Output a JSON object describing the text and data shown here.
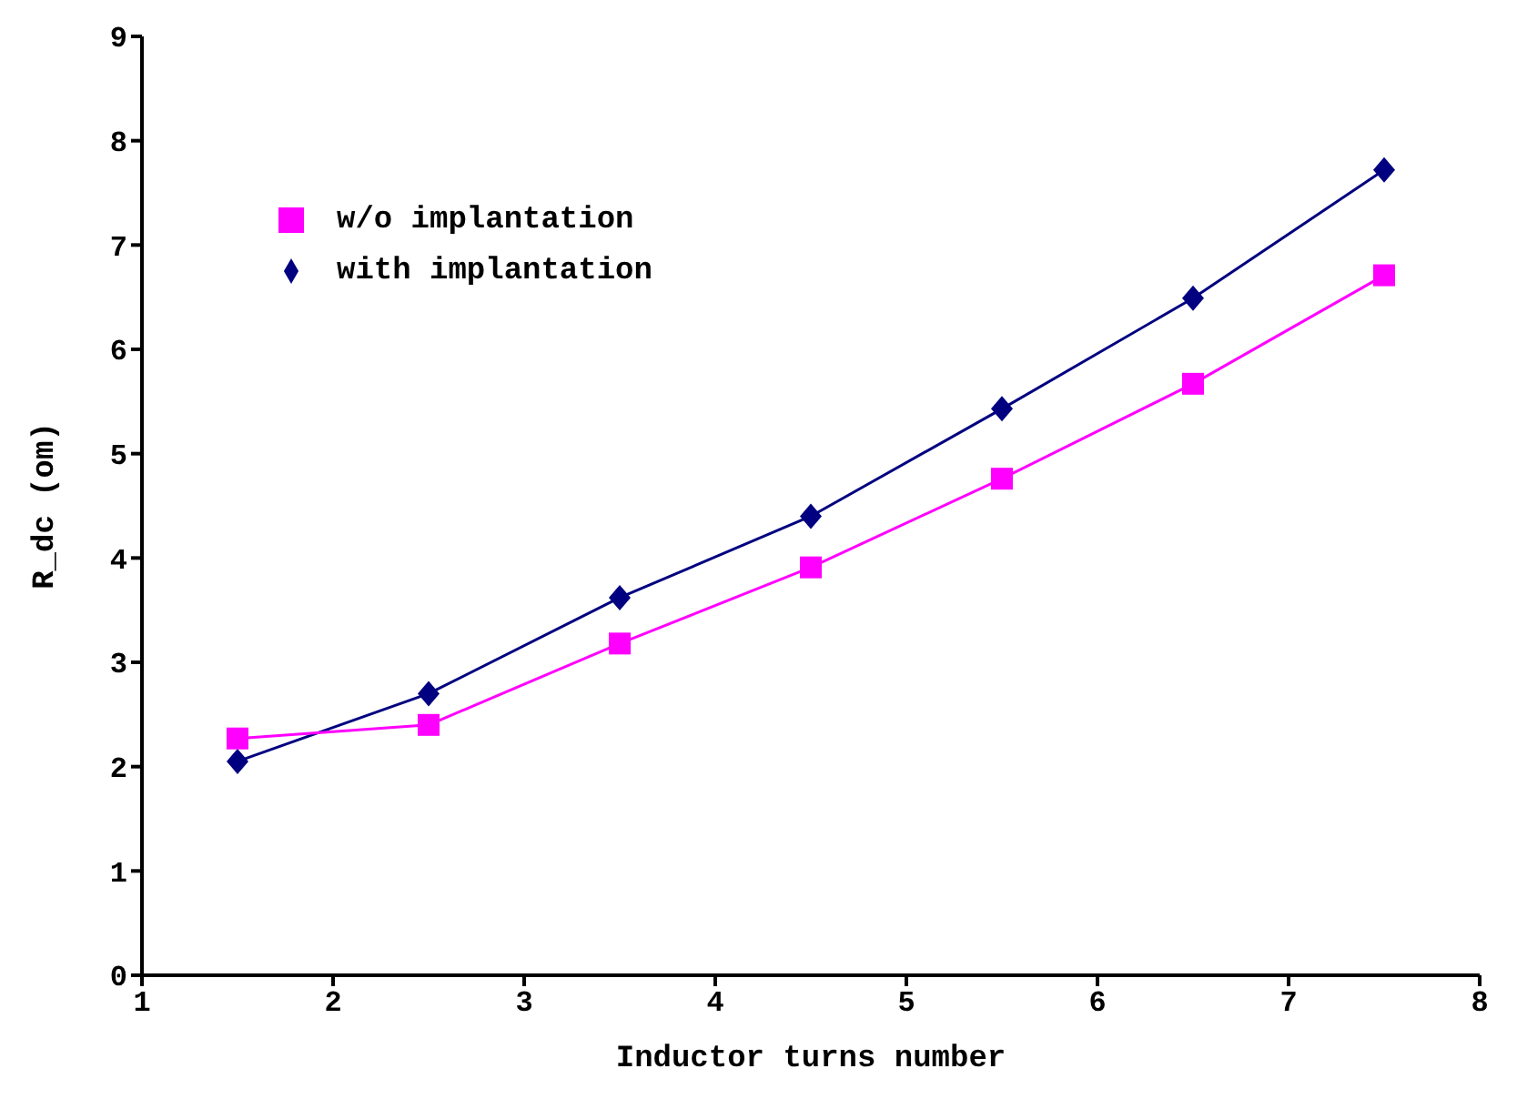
{
  "chart_data": {
    "type": "line",
    "xlabel": "Inductor turns number",
    "ylabel": "R_dc (om)",
    "x": [
      1.5,
      2.5,
      3.5,
      4.5,
      5.5,
      6.5,
      7.5
    ],
    "xlim": [
      1,
      8
    ],
    "xticks": [
      1,
      2,
      3,
      4,
      5,
      6,
      7,
      8
    ],
    "ylim": [
      0,
      9
    ],
    "yticks": [
      0,
      1,
      2,
      3,
      4,
      5,
      6,
      7,
      8,
      9
    ],
    "grid": false,
    "legend": "top left",
    "series": [
      {
        "name": "with implantation",
        "color": "#000080",
        "marker": "diamond",
        "values": [
          2.05,
          2.7,
          3.62,
          4.4,
          5.43,
          6.49,
          7.72
        ]
      },
      {
        "name": "w/o implantation",
        "color": "#ff00ff",
        "marker": "square",
        "values": [
          2.27,
          2.4,
          3.18,
          3.91,
          4.76,
          5.67,
          6.71
        ]
      }
    ]
  }
}
